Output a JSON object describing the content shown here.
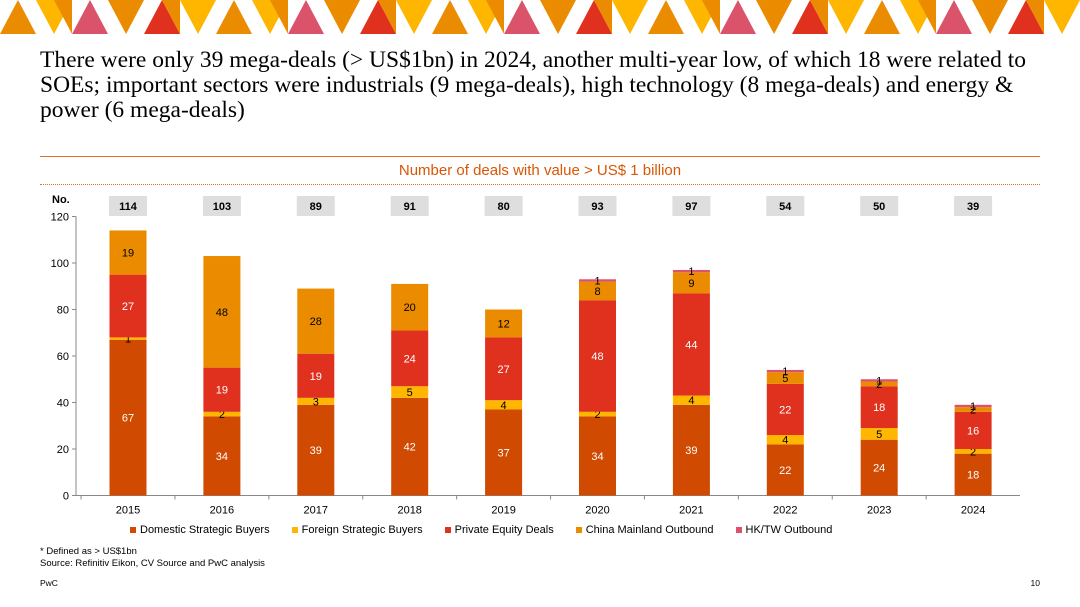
{
  "page": {
    "title": "There were only 39 mega-deals (> US$1bn) in 2024, another multi-year low, of which 18 were related to SOEs; important sectors were industrials (9 mega-deals), high technology (8 mega-deals) and energy & power (6 mega-deals)",
    "subtitle": "Number of deals with value > US$ 1 billion",
    "footnote1": "* Defined as > US$1bn",
    "footnote2": "Source: Refinitiv Eikon, CV Source and PwC analysis",
    "brand": "PwC",
    "page_number": "10"
  },
  "colors": {
    "banner_orange": "#EB8C00",
    "banner_yellow": "#FFB600",
    "banner_pink": "#DB536A",
    "banner_red": "#E0301E",
    "accent": "#D85604",
    "total_box": "#DEDEDE"
  },
  "chart_data": {
    "type": "bar",
    "stacked": true,
    "title": "Number of deals with value > US$ 1 billion",
    "ylabel": "No.",
    "xlabel": "",
    "ylim": [
      0,
      120
    ],
    "yticks": [
      0,
      20,
      40,
      60,
      80,
      100,
      120
    ],
    "grid": false,
    "legend_position": "bottom",
    "categories": [
      "2015",
      "2016",
      "2017",
      "2018",
      "2019",
      "2020",
      "2021",
      "2022",
      "2023",
      "2024"
    ],
    "totals": [
      114,
      103,
      89,
      91,
      80,
      93,
      97,
      54,
      50,
      39
    ],
    "series": [
      {
        "name": "Domestic Strategic Buyers",
        "color": "#D04A02",
        "label_color": "#FFFFFF",
        "values": [
          67,
          34,
          39,
          42,
          37,
          34,
          39,
          22,
          24,
          18
        ]
      },
      {
        "name": "Foreign Strategic Buyers",
        "color": "#FFB600",
        "label_color": "#000000",
        "values": [
          1,
          2,
          3,
          5,
          4,
          2,
          4,
          4,
          5,
          2
        ]
      },
      {
        "name": "Private Equity Deals",
        "color": "#E0301E",
        "label_color": "#FFFFFF",
        "values": [
          27,
          19,
          19,
          24,
          27,
          48,
          44,
          22,
          18,
          16
        ]
      },
      {
        "name": "China Mainland Outbound",
        "color": "#EB8C00",
        "label_color": "#000000",
        "values": [
          19,
          48,
          28,
          20,
          12,
          8,
          9,
          5,
          2,
          2
        ]
      },
      {
        "name": "HK/TW Outbound",
        "color": "#DB536A",
        "label_color": "#000000",
        "values": [
          0,
          0,
          0,
          0,
          0,
          1,
          1,
          1,
          1,
          1
        ]
      }
    ]
  }
}
